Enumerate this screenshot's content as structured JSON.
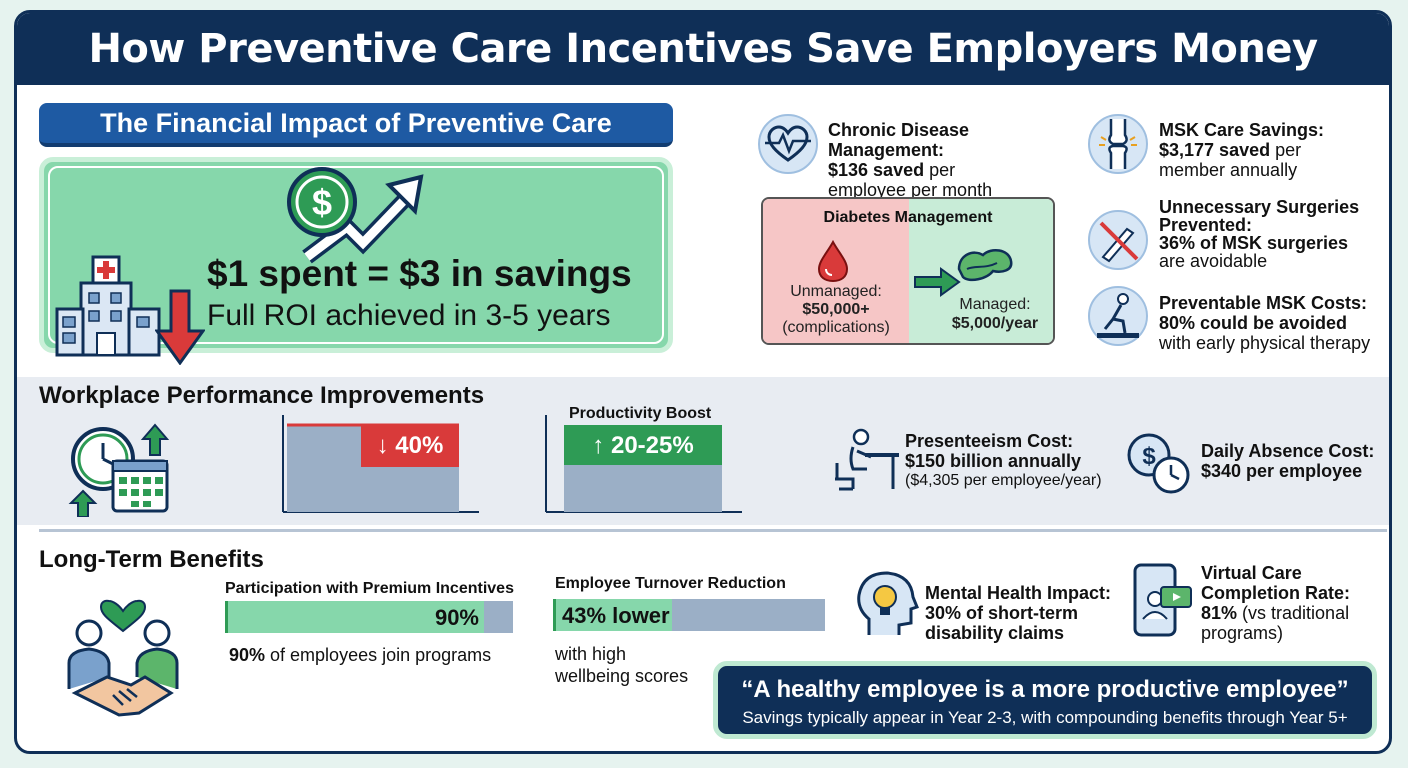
{
  "title": "How Preventive Care Incentives Save Employers Money",
  "financial": {
    "heading": "The Financial Impact of Preventive Care",
    "roi_headline": "$1 spent = $3 in savings",
    "roi_sub": "Full ROI achieved in 3-5 years",
    "icons": [
      "dollar-coin-icon",
      "trend-up-arrow-icon",
      "hospital-icon",
      "down-arrow-icon"
    ]
  },
  "stats": {
    "chronic": {
      "label": "Chronic Disease Management:",
      "value": "$136 saved",
      "rest": " per",
      "line3": "employee per month",
      "icon": "heart-monitor-icon"
    },
    "msk": {
      "label": "MSK Care Savings:",
      "value": "$3,177 saved",
      "rest": " per",
      "line3": "member annually",
      "icon": "knee-joint-icon"
    },
    "surgeries": {
      "label1": "Unnecessary Surgeries",
      "label2": "Prevented:",
      "value": "36% of MSK surgeries",
      "line4": "are avoidable",
      "icon": "no-scalpel-icon"
    },
    "preventable": {
      "label": "Preventable MSK Costs:",
      "value": "80% could be avoided",
      "line3": "with early physical therapy",
      "icon": "physical-therapy-icon"
    }
  },
  "diabetes": {
    "title": "Diabetes Management",
    "unmanaged_label": "Unmanaged:",
    "unmanaged_value": "$50,000+",
    "unmanaged_note": "(complications)",
    "managed_label": "Managed:",
    "managed_value": "$5,000/year",
    "colors": {
      "unmanaged": "#f6c6c6",
      "managed": "#c8ecd7",
      "arrow": "#2e9b55"
    }
  },
  "workplace": {
    "heading": "Workplace Performance Improvements",
    "absence_reduction": {
      "label": "↓ 40%",
      "value_pct": 40,
      "color": "#d93a3a"
    },
    "productivity": {
      "title": "Productivity Boost",
      "label": "↑ 20-25%",
      "color": "#2e9b55"
    },
    "presenteeism": {
      "label": "Presenteeism Cost:",
      "value": "$150 billion annually",
      "note": "($4,305 per employee/year)",
      "icon": "desk-worker-icon"
    },
    "absence": {
      "label": "Daily Absence Cost:",
      "value": "$340 per employee",
      "icon": "money-clock-icon"
    }
  },
  "longterm": {
    "heading": "Long-Term Benefits",
    "participation": {
      "title": "Participation with Premium Incentives",
      "bar_label": "90%",
      "value_pct": 90,
      "caption_bold": "90%",
      "caption_rest": " of employees join programs"
    },
    "turnover": {
      "title": "Employee Turnover Reduction",
      "bar_label": "43% lower",
      "value_pct": 43,
      "caption1": "with high",
      "caption2": "wellbeing scores"
    },
    "mental": {
      "label": "Mental Health Impact:",
      "value1": "30% of short-term",
      "value2": "disability claims",
      "icon": "lightbulb-head-icon"
    },
    "virtual": {
      "label1": "Virtual Care",
      "label2": "Completion Rate:",
      "value": "81%",
      "rest": " (vs traditional",
      "line4": "programs)",
      "icon": "phone-video-icon"
    }
  },
  "quote": {
    "text": "“A healthy employee is a more productive employee”",
    "sub": "Savings typically appear in Year 2-3, with compounding benefits through Year 5+"
  }
}
